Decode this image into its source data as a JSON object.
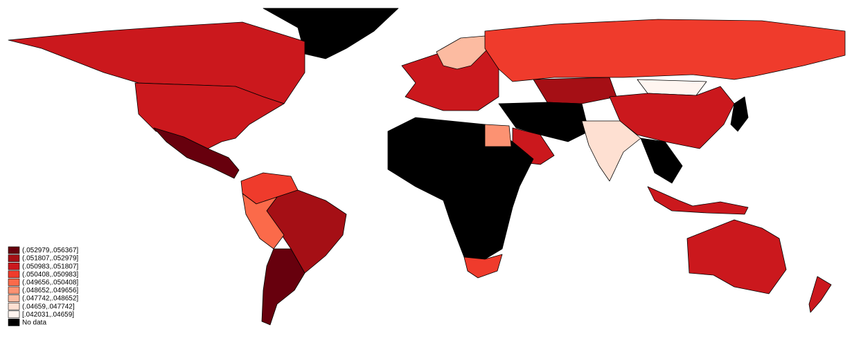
{
  "legend": {
    "items": [
      {
        "label": "(.052979,.056367]",
        "color": "#67000d"
      },
      {
        "label": "(.051807,.052979]",
        "color": "#a50f15"
      },
      {
        "label": "(.050983,.051807]",
        "color": "#cb181d"
      },
      {
        "label": "(.050408,.050983]",
        "color": "#ef3b2c"
      },
      {
        "label": "(.049656,.050408]",
        "color": "#fb6a4a"
      },
      {
        "label": "(.048652,.049656]",
        "color": "#fc9272"
      },
      {
        "label": "(.047742,.048652]",
        "color": "#fcbba1"
      },
      {
        "label": "(.04659,.047742]",
        "color": "#fee0d2"
      },
      {
        "label": "[.042031,.04659]",
        "color": "#fff5f0"
      },
      {
        "label": "No data",
        "color": "#000000"
      }
    ]
  }
}
